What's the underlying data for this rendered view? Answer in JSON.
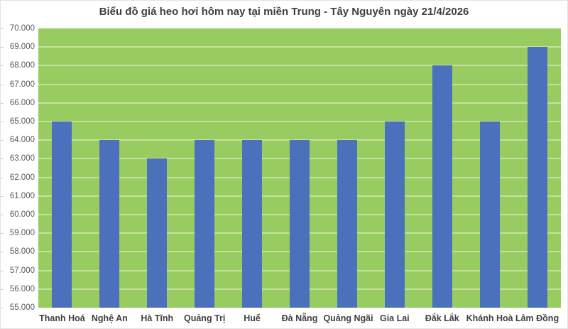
{
  "chart_data": {
    "type": "bar",
    "title": "Biểu đồ giá heo hơi hôm nay tại miền Trung - Tây Nguyên ngày 21/4/2026",
    "categories": [
      "Thanh Hoá",
      "Nghệ An",
      "Hà Tĩnh",
      "Quảng Trị",
      "Huế",
      "Đà Nẵng",
      "Quảng Ngãi",
      "Gia Lai",
      "Đắk Lắk",
      "Khánh Hoà",
      "Lâm Đồng"
    ],
    "values": [
      65000,
      64000,
      63000,
      64000,
      64000,
      64000,
      64000,
      65000,
      68000,
      65000,
      69000
    ],
    "xlabel": "",
    "ylabel": "",
    "ylim": [
      55000,
      70000
    ],
    "ytick_step": 1000,
    "ytick_labels": [
      "55.000",
      "56.000",
      "57.000",
      "58.000",
      "59.000",
      "60.000",
      "61.000",
      "62.000",
      "63.000",
      "64.000",
      "65.000",
      "66.000",
      "67.000",
      "68.000",
      "69.000",
      "70.000"
    ],
    "grid": true,
    "legend": false,
    "colors": {
      "bar": "#4b71bd",
      "plot_background": "#98cb60",
      "gridline": "#c6e0a0",
      "title_text": "#3f3f3f",
      "x_label_text": "#3f3f3f",
      "y_label_text": "#595959",
      "page_background": "#ffffff",
      "border": "#e3e3e3",
      "tick": "#c8c8c8"
    }
  }
}
